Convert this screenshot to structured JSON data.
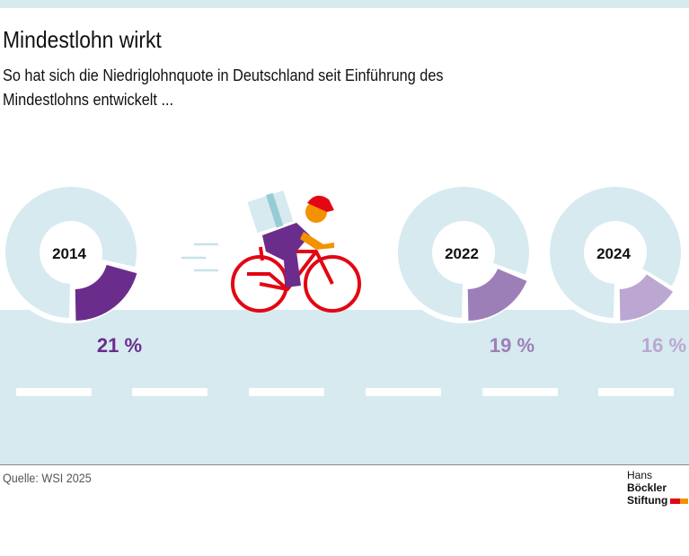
{
  "title": "Mindestlohn wirkt",
  "subtitle": "So hat sich die Niedriglohnquote in Deutschland seit Einführung des Mindestlohns entwickelt ...",
  "source": "Quelle: WSI 2025",
  "logo": {
    "line1_a": "Hans",
    "line1_b": "Böckler",
    "line2": "Stiftung"
  },
  "colors": {
    "ring": "#d6eaf0",
    "road": "#d7eaf0",
    "bike": "#e30613"
  },
  "chart_data": {
    "type": "pie",
    "categories": [
      "2014",
      "2022",
      "2024"
    ],
    "values": [
      21,
      19,
      16
    ],
    "labels": [
      "21 %",
      "19 %",
      "16 %"
    ],
    "colors": [
      "#6b2d8b",
      "#9d7fb8",
      "#bba7d2"
    ]
  }
}
